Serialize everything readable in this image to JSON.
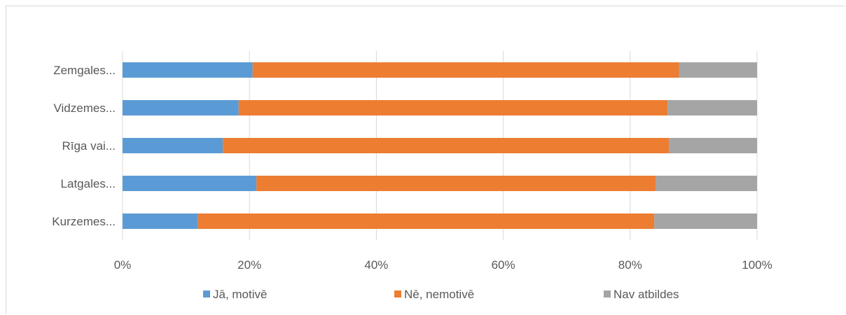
{
  "chart_data": {
    "type": "bar",
    "orientation": "horizontal",
    "stacked": "percent",
    "categories": [
      "Zemgales...",
      "Vidzemes...",
      "Rīga vai...",
      "Latgales...",
      "Kurzemes..."
    ],
    "series": [
      {
        "name": "Jā, motivē",
        "color": "#5b9bd5",
        "values": [
          20.5,
          18.3,
          15.8,
          21.1,
          11.9
        ]
      },
      {
        "name": "Nē, nemotivē",
        "color": "#ed7d31",
        "values": [
          67.2,
          67.6,
          70.3,
          62.9,
          71.9
        ]
      },
      {
        "name": "Nav atbildes",
        "color": "#a5a5a5",
        "values": [
          12.3,
          14.1,
          13.9,
          16.0,
          16.2
        ]
      }
    ],
    "x_ticks": [
      "0%",
      "20%",
      "40%",
      "60%",
      "80%",
      "100%"
    ],
    "xlim": [
      0,
      100
    ],
    "grid": true,
    "legend_position": "bottom"
  }
}
